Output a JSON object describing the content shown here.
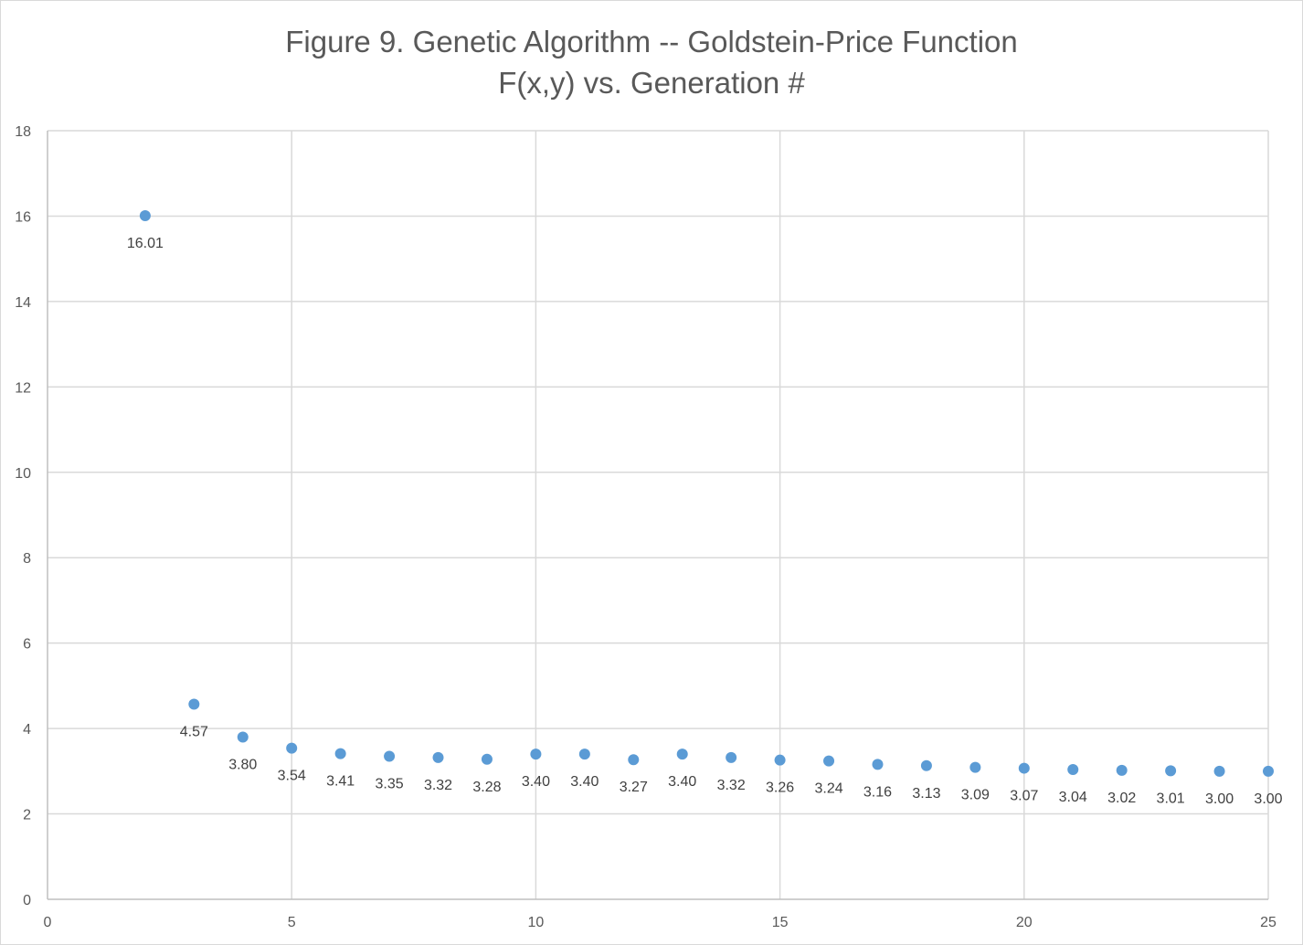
{
  "chart_data": {
    "type": "scatter",
    "title_lines": [
      "Figure 9. Genetic Algorithm -- Goldstein-Price Function",
      "F(x,y) vs. Generation #"
    ],
    "xlabel": "",
    "ylabel": "",
    "xlim": [
      0,
      25
    ],
    "ylim": [
      0,
      18
    ],
    "x_ticks": [
      0,
      5,
      10,
      15,
      20,
      25
    ],
    "y_ticks": [
      0,
      2,
      4,
      6,
      8,
      10,
      12,
      14,
      16,
      18
    ],
    "x_tick_labels": [
      "0",
      "5",
      "10",
      "15",
      "20",
      "25"
    ],
    "y_tick_labels": [
      "0",
      "2",
      "4",
      "6",
      "8",
      "10",
      "12",
      "14",
      "16",
      "18"
    ],
    "grid": true,
    "legend": "none",
    "marker_color": "#5b9bd5",
    "points": [
      {
        "x": 2,
        "y": 16.01,
        "label": "16.01"
      },
      {
        "x": 3,
        "y": 4.57,
        "label": "4.57"
      },
      {
        "x": 4,
        "y": 3.8,
        "label": "3.80"
      },
      {
        "x": 5,
        "y": 3.54,
        "label": "3.54"
      },
      {
        "x": 6,
        "y": 3.41,
        "label": "3.41"
      },
      {
        "x": 7,
        "y": 3.35,
        "label": "3.35"
      },
      {
        "x": 8,
        "y": 3.32,
        "label": "3.32"
      },
      {
        "x": 9,
        "y": 3.28,
        "label": "3.28"
      },
      {
        "x": 10,
        "y": 3.4,
        "label": "3.40"
      },
      {
        "x": 11,
        "y": 3.4,
        "label": "3.40"
      },
      {
        "x": 12,
        "y": 3.27,
        "label": "3.27"
      },
      {
        "x": 13,
        "y": 3.4,
        "label": "3.40"
      },
      {
        "x": 14,
        "y": 3.32,
        "label": "3.32"
      },
      {
        "x": 15,
        "y": 3.26,
        "label": "3.26"
      },
      {
        "x": 16,
        "y": 3.24,
        "label": "3.24"
      },
      {
        "x": 17,
        "y": 3.16,
        "label": "3.16"
      },
      {
        "x": 18,
        "y": 3.13,
        "label": "3.13"
      },
      {
        "x": 19,
        "y": 3.09,
        "label": "3.09"
      },
      {
        "x": 20,
        "y": 3.07,
        "label": "3.07"
      },
      {
        "x": 21,
        "y": 3.04,
        "label": "3.04"
      },
      {
        "x": 22,
        "y": 3.02,
        "label": "3.02"
      },
      {
        "x": 23,
        "y": 3.01,
        "label": "3.01"
      },
      {
        "x": 24,
        "y": 3.0,
        "label": "3.00"
      },
      {
        "x": 25,
        "y": 3.0,
        "label": "3.00"
      }
    ]
  }
}
